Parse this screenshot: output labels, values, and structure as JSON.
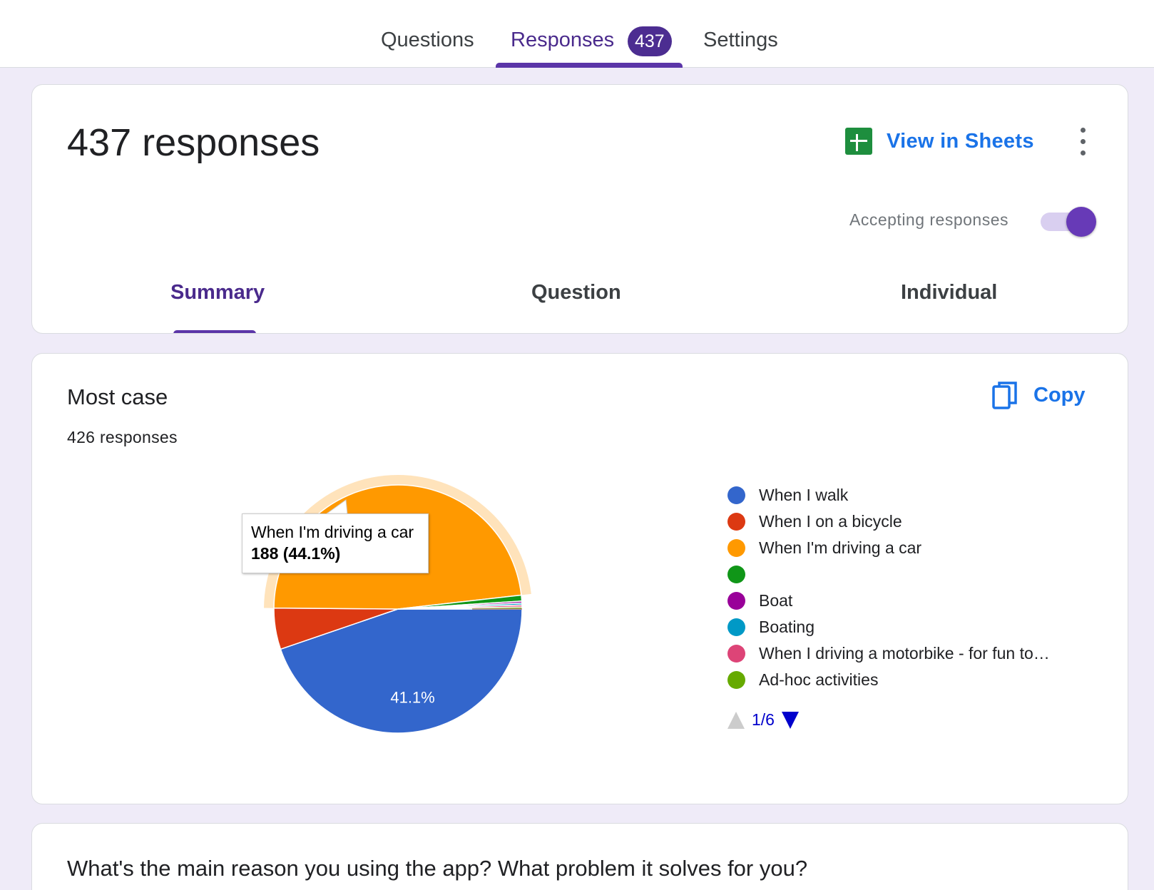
{
  "topnav": {
    "tabs": [
      {
        "label": "Questions"
      },
      {
        "label": "Responses",
        "badge": "437"
      },
      {
        "label": "Settings"
      }
    ],
    "active_tab": "Responses"
  },
  "summary_card": {
    "title": "437 responses",
    "view_in_sheets_label": "View in Sheets",
    "accepting_label": "Accepting responses",
    "accepting_on": true,
    "subtabs": [
      {
        "label": "Summary"
      },
      {
        "label": "Question"
      },
      {
        "label": "Individual"
      }
    ],
    "active_subtab": "Summary"
  },
  "question_card": {
    "title": "Most case",
    "count": "426 responses",
    "copy_label": "Copy",
    "tooltip": {
      "label": "When I'm driving a car",
      "value": "188 (44.1%)"
    },
    "slice_label": "41.1%",
    "pager": "1/6"
  },
  "chart_data": {
    "type": "pie",
    "total": 426,
    "slices": [
      {
        "label": "When I walk",
        "value": 175,
        "percent": 41.1,
        "color": "#3366cc"
      },
      {
        "label": "When I on a bicycle",
        "value": 21,
        "percent": 4.9,
        "color": "#dc3912"
      },
      {
        "label": "When I'm driving a car",
        "value": 188,
        "percent": 44.1,
        "color": "#ff9900"
      },
      {
        "label": "",
        "value": 3,
        "percent": 0.7,
        "color": "#109618"
      },
      {
        "label": "Boat",
        "value": 1,
        "percent": 0.2,
        "color": "#990099"
      },
      {
        "label": "Boating",
        "value": 1,
        "percent": 0.2,
        "color": "#0099c6"
      },
      {
        "label": "When I driving a motorbike - for fun to…",
        "value": 1,
        "percent": 0.2,
        "color": "#dd4477"
      },
      {
        "label": "Ad-hoc activities",
        "value": 1,
        "percent": 0.2,
        "color": "#66aa00"
      }
    ],
    "legend_position": "right"
  },
  "next_card": {
    "title": "What's the main reason you using the app? What problem it solves for you?"
  }
}
